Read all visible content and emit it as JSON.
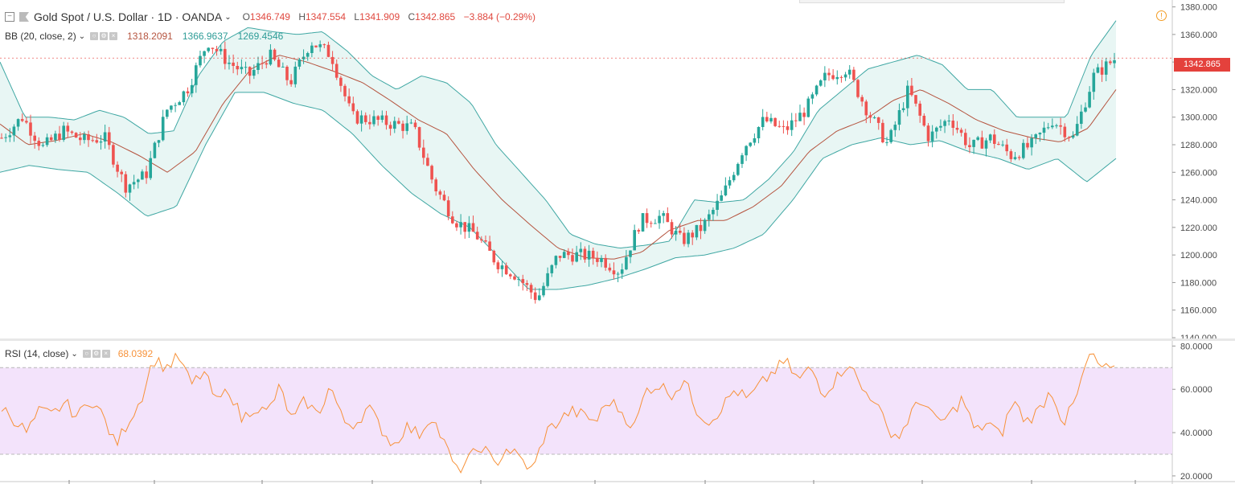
{
  "header": {
    "symbol": "Gold Spot / U.S. Dollar · 1D · OANDA",
    "open_label": "O",
    "open": "1346.749",
    "high_label": "H",
    "high": "1347.554",
    "low_label": "L",
    "low": "1341.909",
    "close_label": "C",
    "close": "1342.865",
    "change": "−3.884 (−0.29%)"
  },
  "bb": {
    "label": "BB (20, close, 2)",
    "basis": "1318.2091",
    "upper": "1366.9637",
    "lower": "1269.4546"
  },
  "rsi": {
    "label": "RSI (14, close)",
    "value": "68.0392"
  },
  "last_price": "1342.865",
  "colors": {
    "up": "#26a69a",
    "down": "#ef5350",
    "bb_line": "#3fa7a3",
    "bb_fill": "#e8f6f4",
    "basis": "#b5543f",
    "rsi_line": "#f7923a",
    "rsi_band": "#f3e3fb",
    "accent": "#e4413c"
  },
  "chart_data": [
    {
      "type": "candlestick",
      "title": "Gold Spot / U.S. Dollar · 1D · OANDA",
      "y_ticks": [
        "1380.000",
        "1360.000",
        "1340.000",
        "1320.000",
        "1300.000",
        "1280.000",
        "1260.000",
        "1240.000",
        "1220.000",
        "1200.000",
        "1180.000",
        "1160.000",
        "1140.000"
      ],
      "ylim": [
        1140,
        1385
      ],
      "close_anchors": [
        1285,
        1300,
        1278,
        1290,
        1283,
        1285,
        1250,
        1258,
        1305,
        1320,
        1355,
        1340,
        1330,
        1345,
        1325,
        1355,
        1345,
        1300,
        1298,
        1295,
        1292,
        1250,
        1225,
        1215,
        1195,
        1185,
        1168,
        1200,
        1200,
        1198,
        1188,
        1225,
        1228,
        1210,
        1220,
        1243,
        1278,
        1298,
        1290,
        1305,
        1330,
        1335,
        1305,
        1280,
        1320,
        1285,
        1300,
        1278,
        1285,
        1272,
        1280,
        1298,
        1285,
        1330,
        1342
      ],
      "bb_upper_anchors": [
        1340,
        1300,
        1300,
        1298,
        1305,
        1300,
        1288,
        1290,
        1330,
        1355,
        1365,
        1362,
        1360,
        1362,
        1348,
        1330,
        1320,
        1330,
        1325,
        1310,
        1280,
        1260,
        1240,
        1215,
        1208,
        1205,
        1207,
        1210,
        1240,
        1238,
        1240,
        1255,
        1275,
        1305,
        1320,
        1335,
        1340,
        1345,
        1338,
        1320,
        1320,
        1300,
        1300,
        1300,
        1345,
        1370
      ],
      "bb_lower_anchors": [
        1260,
        1265,
        1262,
        1260,
        1245,
        1228,
        1235,
        1280,
        1318,
        1318,
        1310,
        1305,
        1288,
        1265,
        1245,
        1230,
        1220,
        1198,
        1175,
        1175,
        1178,
        1183,
        1190,
        1198,
        1200,
        1205,
        1215,
        1240,
        1270,
        1280,
        1285,
        1280,
        1283,
        1275,
        1270,
        1262,
        1270,
        1253,
        1270
      ],
      "basis_anchors": [
        1295,
        1280,
        1283,
        1288,
        1282,
        1272,
        1260,
        1275,
        1310,
        1335,
        1345,
        1340,
        1333,
        1325,
        1312,
        1298,
        1288,
        1262,
        1240,
        1222,
        1205,
        1198,
        1197,
        1202,
        1218,
        1225,
        1225,
        1235,
        1250,
        1275,
        1290,
        1298,
        1312,
        1320,
        1310,
        1298,
        1290,
        1285,
        1282,
        1292,
        1320
      ],
      "last_price": 1342.865
    },
    {
      "type": "line",
      "title": "RSI (14, close)",
      "y_ticks": [
        "80.0000",
        "60.0000",
        "40.0000",
        "20.0000"
      ],
      "ylim": [
        17,
        82
      ],
      "band": [
        30,
        70
      ],
      "values": [
        52,
        46,
        40,
        50,
        48,
        54,
        47,
        56,
        48,
        34,
        45,
        55,
        74,
        70,
        75,
        62,
        68,
        54,
        60,
        46,
        52,
        49,
        61,
        45,
        55,
        48,
        62,
        45,
        44,
        52,
        42,
        34,
        43,
        39,
        48,
        35,
        22,
        28,
        34,
        25,
        33,
        28,
        22,
        40,
        45,
        50,
        48,
        45,
        55,
        50,
        42,
        60,
        62,
        58,
        64,
        50,
        45,
        52,
        60,
        55,
        62,
        68,
        73,
        64,
        70,
        58,
        65,
        73,
        60,
        56,
        42,
        38,
        50,
        55,
        44,
        48,
        56,
        40,
        45,
        38,
        55,
        45,
        50,
        60,
        44,
        56,
        76,
        70,
        68
      ]
    }
  ]
}
